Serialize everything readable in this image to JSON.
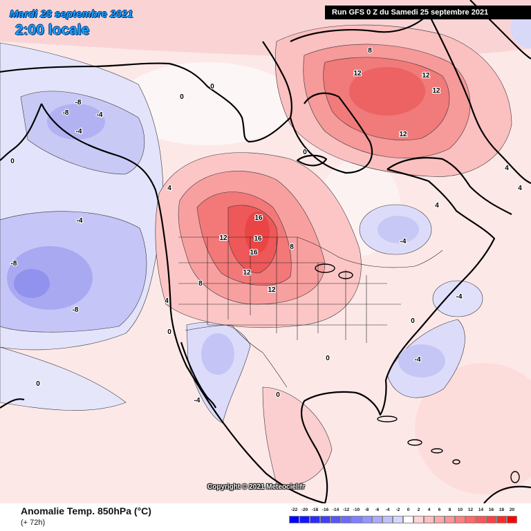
{
  "header": {
    "date": "Mardi 28 septembre 2021",
    "time": "2:00 locale",
    "run": "Run GFS 0 Z du Samedi 25 septembre 2021"
  },
  "footer": {
    "title": "Anomalie Temp. 850hPa (°C)",
    "lead": "(+ 72h)"
  },
  "copyright": "Copyright © 2021 Meteociel.fr",
  "legend": {
    "labels": [
      "-22",
      "-20",
      "-18",
      "-16",
      "-14",
      "-12",
      "-10",
      "-8",
      "-6",
      "-4",
      "-2",
      "0",
      "2",
      "4",
      "6",
      "8",
      "10",
      "12",
      "14",
      "16",
      "18",
      "20"
    ],
    "colors": [
      "#0000ff",
      "#1515ff",
      "#2b2bff",
      "#4040ff",
      "#5555ff",
      "#6a6aff",
      "#8080ff",
      "#9595ff",
      "#aaaaff",
      "#c0c0ff",
      "#d5d5ff",
      "#ffffff",
      "#ffd5d5",
      "#ffc0c0",
      "#ffaaaa",
      "#ff9595",
      "#ff8080",
      "#ff6a6a",
      "#ff5555",
      "#ff4040",
      "#ff2b2b",
      "#ff0000"
    ]
  },
  "map": {
    "contour_labels": [
      "16",
      "16",
      "16",
      "12",
      "12",
      "12",
      "12",
      "12",
      "12",
      "12",
      "8",
      "8",
      "8",
      "4",
      "4",
      "4",
      "4",
      "4",
      "-4",
      "-4",
      "-4",
      "-4",
      "-4",
      "-4",
      "-4",
      "-8",
      "-8",
      "-8",
      "-8",
      "0",
      "0",
      "0",
      "0",
      "0",
      "0",
      "0",
      "0",
      "0"
    ]
  },
  "colors": {
    "title": "#1da1ff",
    "run_banner": "#000000"
  }
}
